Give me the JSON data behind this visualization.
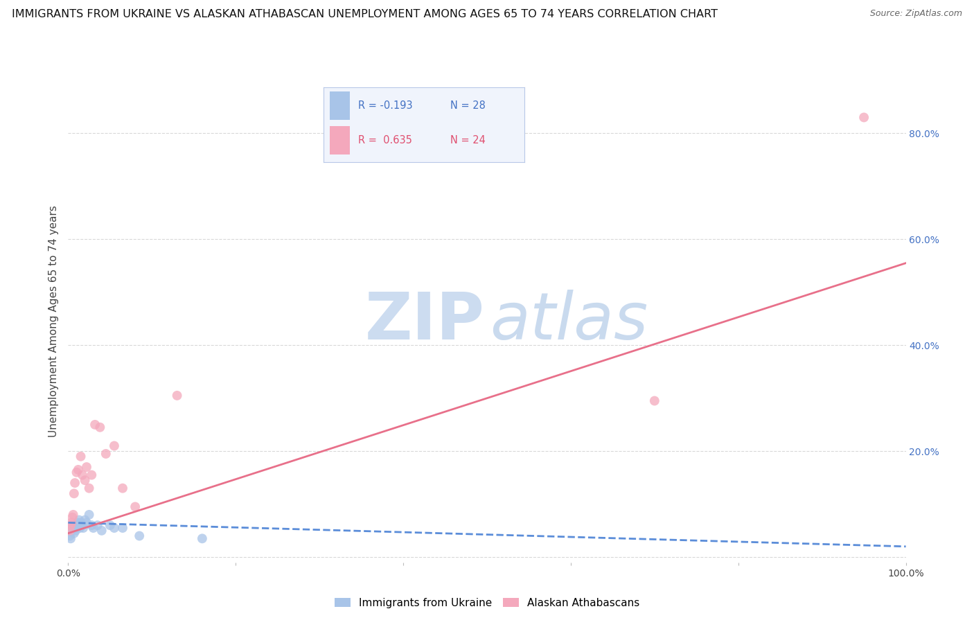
{
  "title": "IMMIGRANTS FROM UKRAINE VS ALASKAN ATHABASCAN UNEMPLOYMENT AMONG AGES 65 TO 74 YEARS CORRELATION CHART",
  "source": "Source: ZipAtlas.com",
  "ylabel": "Unemployment Among Ages 65 to 74 years",
  "watermark_zip": "ZIP",
  "watermark_atlas": "atlas",
  "xlim": [
    0.0,
    1.0
  ],
  "ylim": [
    -0.01,
    0.9
  ],
  "yticks": [
    0.0,
    0.2,
    0.4,
    0.6,
    0.8
  ],
  "right_ytick_labels": [
    "",
    "20.0%",
    "40.0%",
    "60.0%",
    "80.0%"
  ],
  "xticks": [
    0.0,
    0.2,
    0.4,
    0.6,
    0.8,
    1.0
  ],
  "xtick_labels": [
    "0.0%",
    "",
    "",
    "",
    "",
    "100.0%"
  ],
  "legend_ukraine_R": "-0.193",
  "legend_ukraine_N": "28",
  "legend_athabascan_R": "0.635",
  "legend_athabascan_N": "24",
  "ukraine_color": "#a8c4e8",
  "athabascan_color": "#f4a8bc",
  "ukraine_line_color": "#5b8dd9",
  "athabascan_line_color": "#e8708a",
  "ukraine_scatter_x": [
    0.002,
    0.003,
    0.004,
    0.005,
    0.006,
    0.007,
    0.008,
    0.009,
    0.01,
    0.011,
    0.012,
    0.013,
    0.014,
    0.015,
    0.016,
    0.018,
    0.02,
    0.022,
    0.025,
    0.028,
    0.03,
    0.035,
    0.04,
    0.05,
    0.055,
    0.065,
    0.085,
    0.16
  ],
  "ukraine_scatter_y": [
    0.04,
    0.035,
    0.05,
    0.06,
    0.055,
    0.045,
    0.06,
    0.05,
    0.055,
    0.065,
    0.06,
    0.07,
    0.055,
    0.065,
    0.06,
    0.055,
    0.07,
    0.065,
    0.08,
    0.06,
    0.055,
    0.06,
    0.05,
    0.06,
    0.055,
    0.055,
    0.04,
    0.035
  ],
  "athabascan_scatter_x": [
    0.002,
    0.003,
    0.004,
    0.005,
    0.006,
    0.007,
    0.008,
    0.01,
    0.012,
    0.015,
    0.017,
    0.02,
    0.022,
    0.025,
    0.028,
    0.032,
    0.038,
    0.045,
    0.055,
    0.065,
    0.08,
    0.13,
    0.7,
    0.95
  ],
  "athabascan_scatter_y": [
    0.05,
    0.06,
    0.065,
    0.075,
    0.08,
    0.12,
    0.14,
    0.16,
    0.165,
    0.19,
    0.155,
    0.145,
    0.17,
    0.13,
    0.155,
    0.25,
    0.245,
    0.195,
    0.21,
    0.13,
    0.095,
    0.305,
    0.295,
    0.83
  ],
  "ukraine_trend_x": [
    0.0,
    1.0
  ],
  "ukraine_trend_y": [
    0.065,
    0.02
  ],
  "athabascan_trend_x": [
    0.0,
    1.0
  ],
  "athabascan_trend_y": [
    0.045,
    0.555
  ],
  "background_color": "#ffffff",
  "grid_color": "#d8d8d8",
  "title_fontsize": 11.5,
  "source_fontsize": 9,
  "axis_label_fontsize": 11,
  "tick_fontsize": 10,
  "right_tick_color": "#4472c4",
  "legend_box_color": "#f0f4fc",
  "legend_border_color": "#b8c8e8",
  "legend_title_color_ukraine": "#4472c4",
  "legend_title_color_athabascan": "#e05070"
}
